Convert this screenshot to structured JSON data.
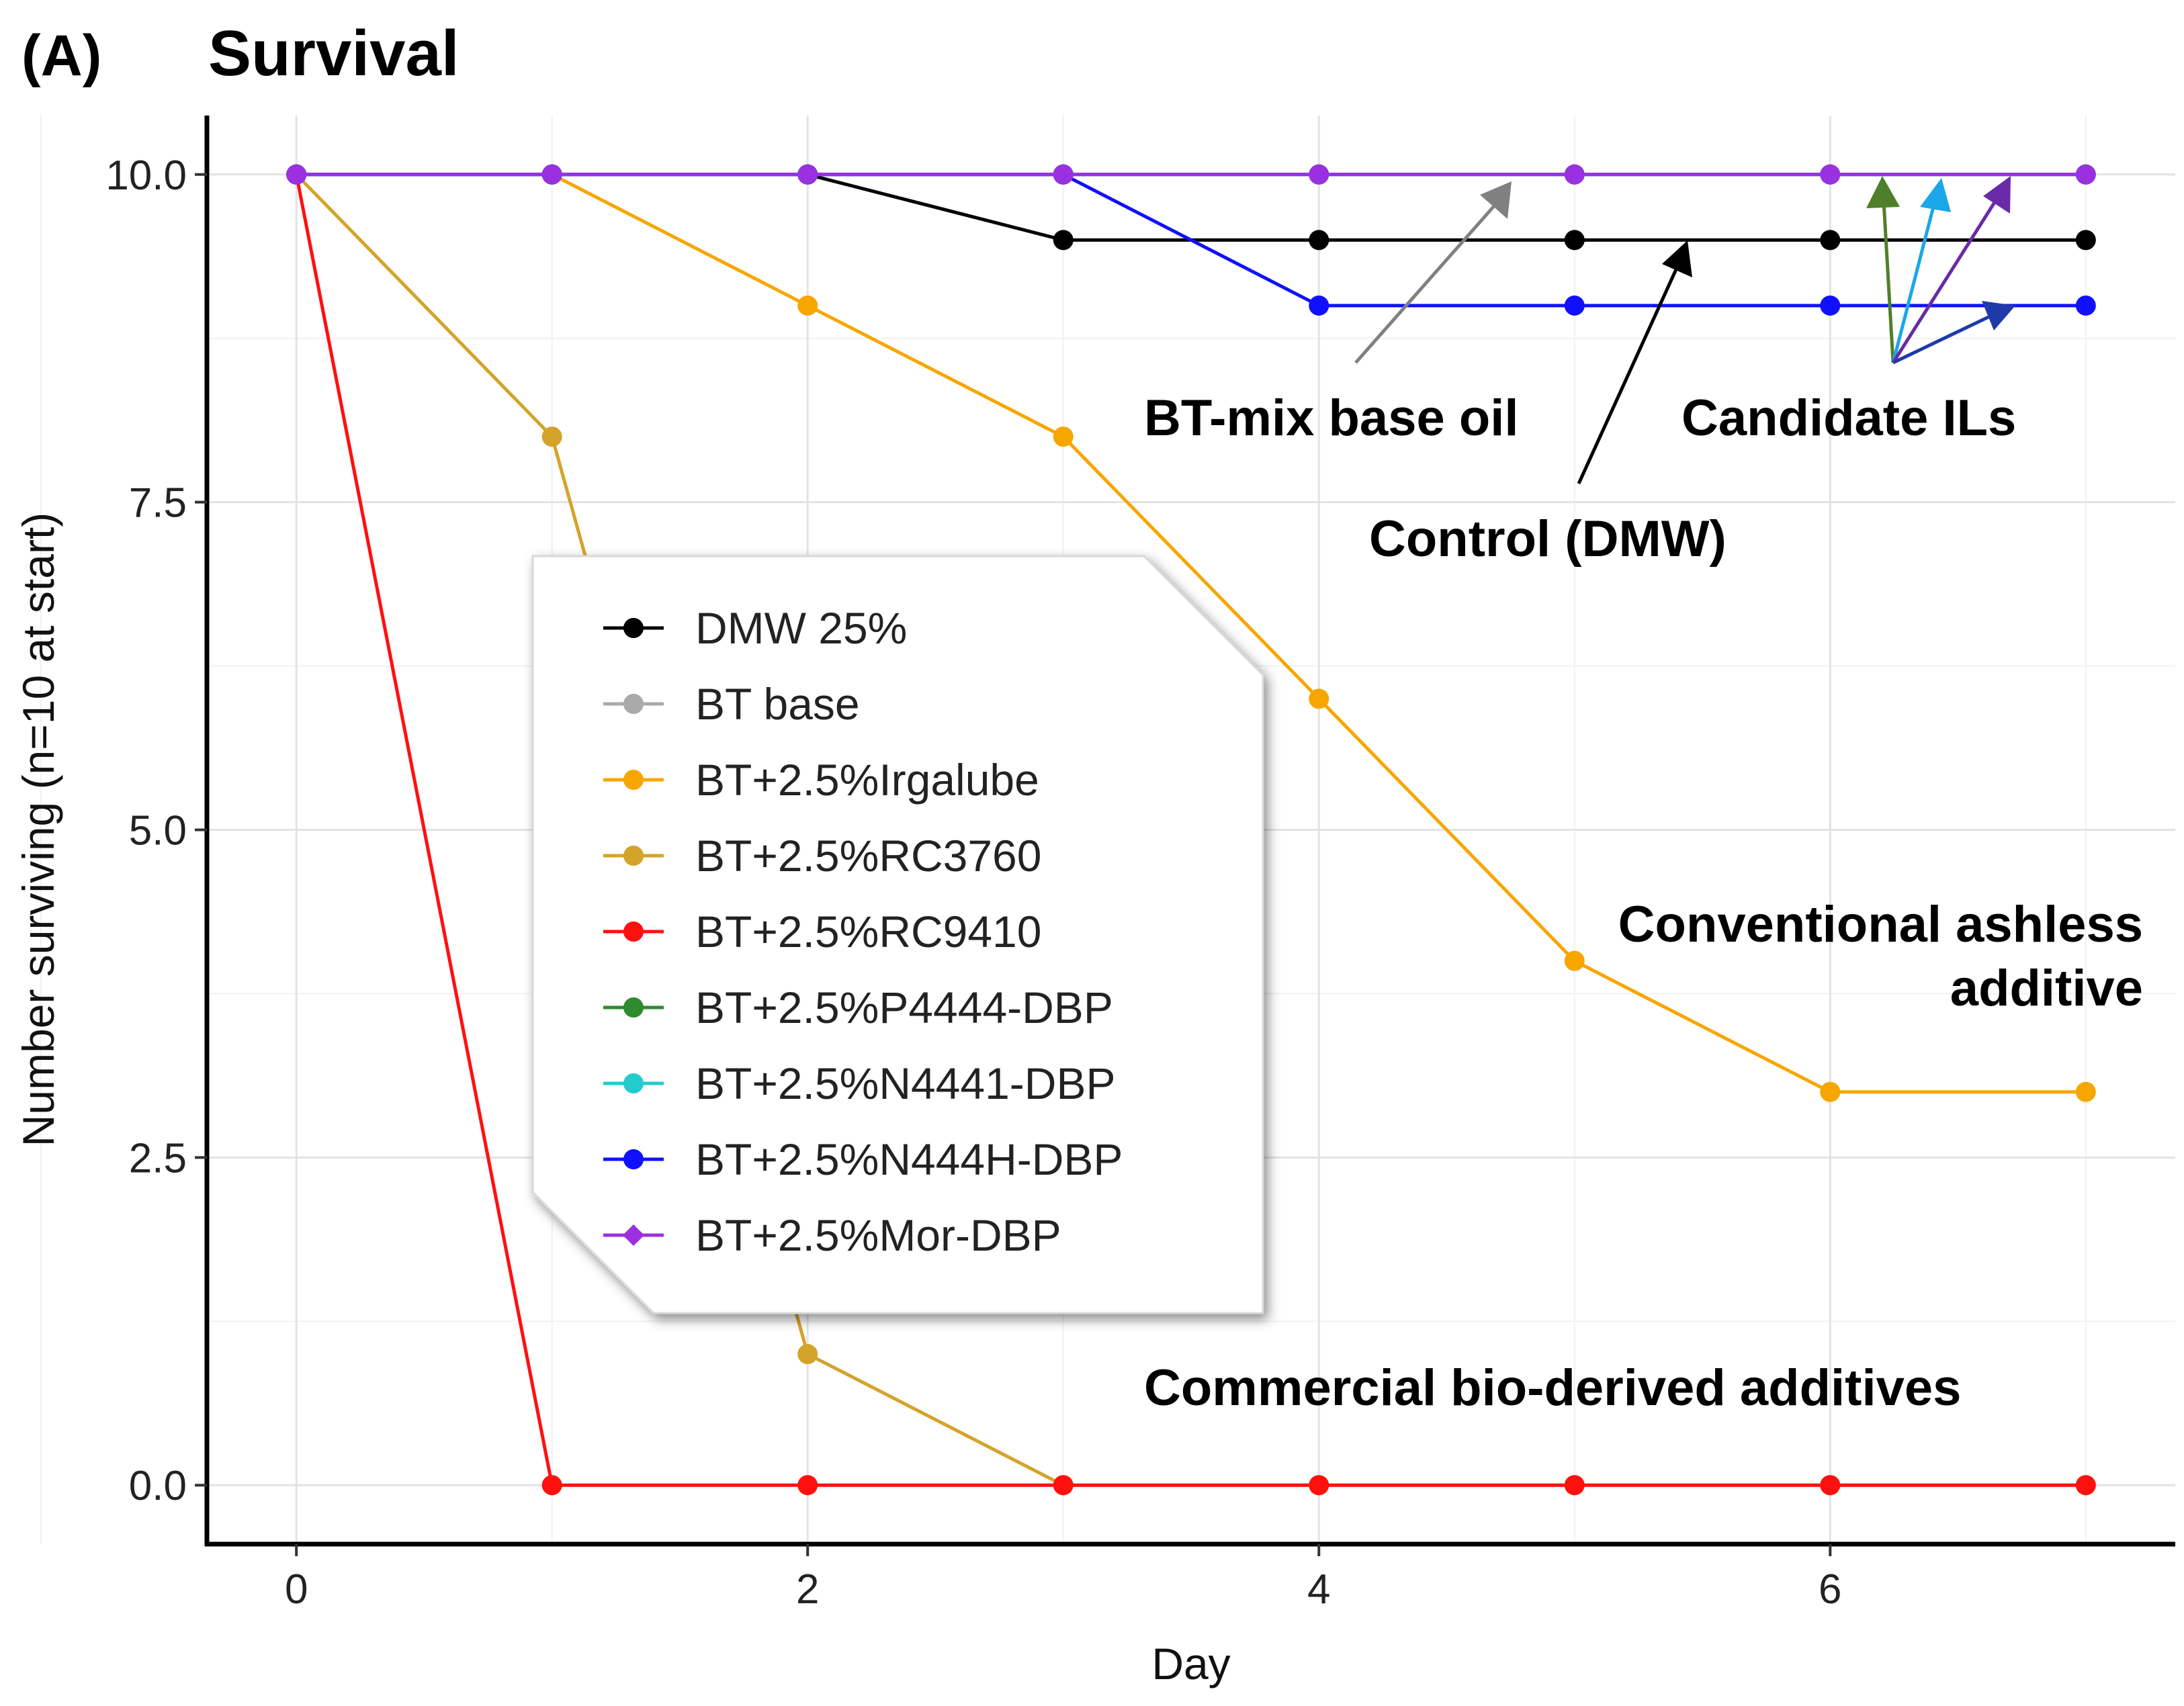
{
  "panel_label": "(A)",
  "chart_data": {
    "type": "line",
    "title": "Survival",
    "xlabel": "Day",
    "ylabel": "Number surviving (n=10 at start)",
    "xlim": [
      -0.35,
      7.35
    ],
    "ylim": [
      -0.45,
      10.45
    ],
    "x_ticks": [
      0,
      2,
      4,
      6
    ],
    "x_tick_labels": [
      "0",
      "2",
      "4",
      "6"
    ],
    "y_ticks": [
      0,
      2.5,
      5,
      7.5,
      10
    ],
    "y_tick_labels": [
      "0.0",
      "2.5",
      "5.0",
      "7.5",
      "10.0"
    ],
    "grid": true,
    "legend_position": "center-left",
    "x": [
      0,
      1,
      2,
      3,
      4,
      5,
      6,
      7
    ],
    "series": [
      {
        "name": "DMW 25%",
        "color": "#000000",
        "values": [
          10,
          10,
          10,
          9.5,
          9.5,
          9.5,
          9.5,
          9.5
        ]
      },
      {
        "name": "BT base",
        "color": "#aaaaaa",
        "values": [
          10,
          10,
          10,
          10,
          10,
          10,
          10,
          10
        ]
      },
      {
        "name": "BT+2.5%Irgalube",
        "color": "#f7a600",
        "values": [
          10,
          10,
          9,
          8,
          6,
          4,
          3,
          3
        ]
      },
      {
        "name": "BT+2.5%RC3760",
        "color": "#d4a32a",
        "values": [
          10,
          8,
          1,
          0,
          0,
          0,
          0,
          0
        ]
      },
      {
        "name": "BT+2.5%RC9410",
        "color": "#ff1010",
        "values": [
          10,
          0,
          0,
          0,
          0,
          0,
          0,
          0
        ]
      },
      {
        "name": "BT+2.5%P4444-DBP",
        "color": "#2e8b2e",
        "values": [
          10,
          10,
          10,
          10,
          10,
          10,
          10,
          10
        ]
      },
      {
        "name": "BT+2.5%N4441-DBP",
        "color": "#22cccc",
        "values": [
          10,
          10,
          10,
          10,
          10,
          10,
          10,
          10
        ]
      },
      {
        "name": "BT+2.5%N444H-DBP",
        "color": "#1010ff",
        "values": [
          10,
          10,
          10,
          10,
          9,
          9,
          9,
          9
        ]
      },
      {
        "name": "BT+2.5%Mor-DBP",
        "color": "#9b30e0",
        "values": [
          10,
          10,
          10,
          10,
          10,
          10,
          10,
          10
        ]
      }
    ],
    "annotations": [
      {
        "text": "BT-mix base oil",
        "arrow_color": "#808080",
        "points_to": {
          "x": 4.75,
          "y": 10
        }
      },
      {
        "text": "Candidate ILs",
        "arrow_colors": [
          "#4f7f2a",
          "#1aa7e8",
          "#6a2aa8",
          "#1f3aa8"
        ]
      },
      {
        "text": "Control (DMW)",
        "arrow_color": "#000000",
        "points_to": {
          "x": 5.45,
          "y": 9.5
        }
      },
      {
        "text_lines": [
          "Conventional ashless",
          "additive"
        ]
      },
      {
        "text": "Commercial bio-derived additives"
      }
    ]
  }
}
